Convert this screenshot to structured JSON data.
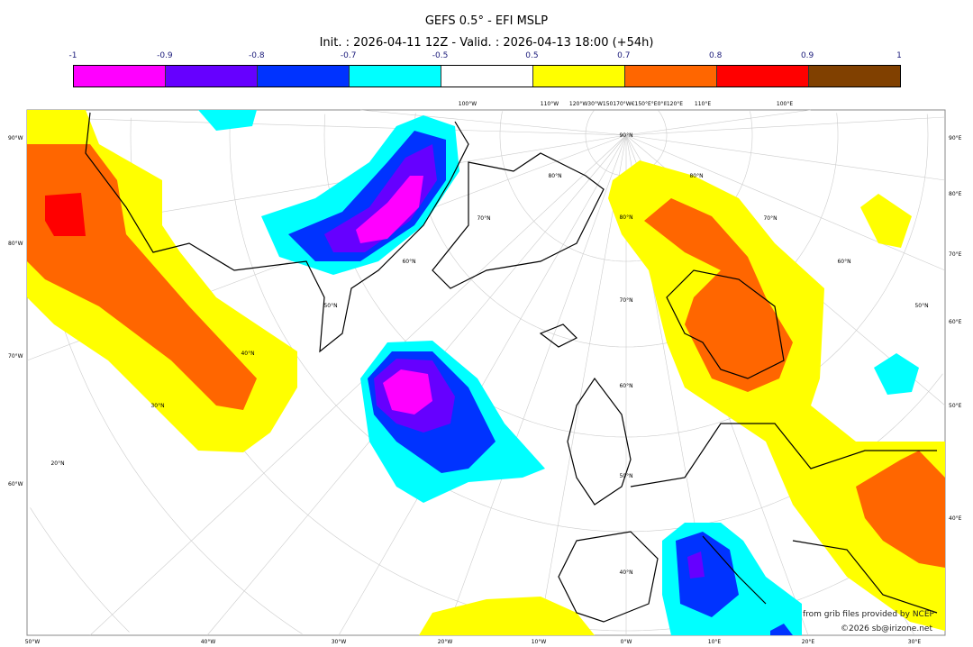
{
  "title": "GEFS 0.5° - EFI MSLP",
  "subtitle": "Init. : 2026-04-11 12Z - Valid. : 2026-04-13 18:00 (+54h)",
  "legend": {
    "ticks": [
      "-1",
      "-0.9",
      "-0.8",
      "-0.7",
      "-0.5",
      "0.5",
      "0.7",
      "0.8",
      "0.9",
      "1"
    ],
    "colors": [
      "#ff00ff",
      "#6600ff",
      "#0033ff",
      "#00ffff",
      "#ffffff",
      "#ffff00",
      "#ff6600",
      "#ff0000",
      "#804000"
    ]
  },
  "map": {
    "left_labels": [
      "90°W",
      "80°W",
      "70°W",
      "60°W"
    ],
    "right_labels": [
      "90°E",
      "80°E",
      "70°E",
      "60°E",
      "50°E",
      "40°E"
    ],
    "bottom_labels": [
      "50°W",
      "40°W",
      "30°W",
      "20°W",
      "10°W",
      "0°W",
      "10°E",
      "20°E",
      "30°E"
    ],
    "top_labels": [
      "100°W",
      "110°W",
      "120°W30°W150170°W€150°E°E0°Il120°E",
      "110°E",
      "100°E"
    ],
    "lat_labels": [
      "90°N",
      "80°N",
      "70°N",
      "60°N",
      "50°N",
      "40°N",
      "30°N",
      "20°N",
      "80°N",
      "70°N",
      "60°N",
      "50°N",
      "80°N",
      "70°N",
      "60°N",
      "50°N",
      "40°N"
    ]
  },
  "credits": {
    "line1": "from grib files provided by NCEP",
    "line2": "©2026 sb@irizone.net"
  }
}
